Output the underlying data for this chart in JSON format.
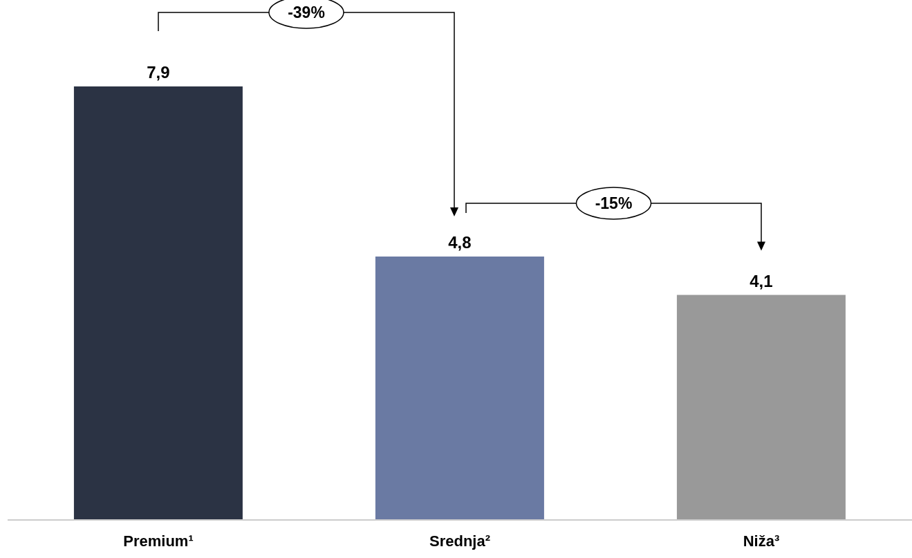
{
  "chart_data": {
    "type": "bar",
    "categories": [
      "Premium¹",
      "Srednja²",
      "Niža³"
    ],
    "values": [
      7.9,
      4.8,
      4.1
    ],
    "colors": [
      "#2b3344",
      "#6a7aa3",
      "#999999"
    ],
    "value_labels": [
      "7,9",
      "4,8",
      "4,1"
    ],
    "annotations": [
      "-39%",
      "-15%"
    ]
  }
}
